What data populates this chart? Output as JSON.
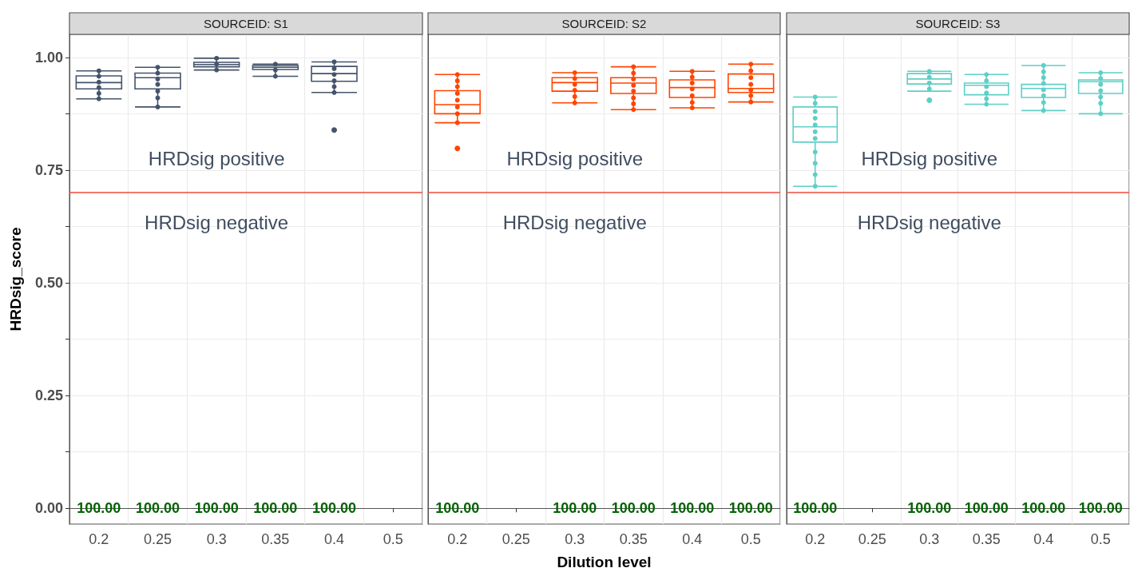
{
  "chart_data": [
    {
      "type": "box",
      "title": "SOURCEID: S1",
      "ylabel": "HRDsig_score",
      "categories": [
        "0.2",
        "0.25",
        "0.3",
        "0.35",
        "0.4",
        "0.5"
      ],
      "ylim": [
        -0.035,
        1.051
      ],
      "yticks": [
        {
          "value": 0,
          "label": "0.00"
        },
        {
          "value": 0.125,
          "label": null
        },
        {
          "value": 0.25,
          "label": "0.25"
        },
        {
          "value": 0.375,
          "label": null
        },
        {
          "value": 0.5,
          "label": "0.50"
        },
        {
          "value": 0.625,
          "label": null
        },
        {
          "value": 0.75,
          "label": "0.75"
        },
        {
          "value": 0.875,
          "label": null
        },
        {
          "value": 1,
          "label": "1.00"
        }
      ],
      "grid": true,
      "ref_lines": [
        {
          "axis": "y",
          "value": 0.7,
          "color": "#f04a3c"
        }
      ],
      "annotations": [
        "HRDsig positive",
        "HRDsig negative",
        "100.00",
        "100.00",
        "100.00",
        "100.00",
        "100.00"
      ],
      "series": [
        {
          "type": "box",
          "color": "#44546a",
          "boxes": [
            {
              "low": 0.908,
              "q1": 0.93,
              "median": 0.944,
              "q3": 0.959,
              "high": 0.97
            },
            {
              "low": 0.89,
              "q1": 0.93,
              "median": 0.955,
              "q3": 0.965,
              "high": 0.978
            },
            {
              "low": 0.972,
              "q1": 0.979,
              "median": 0.984,
              "q3": 0.989,
              "high": 0.998
            },
            {
              "low": 0.958,
              "q1": 0.973,
              "median": 0.978,
              "q3": 0.982,
              "high": 0.985
            },
            {
              "low": 0.922,
              "q1": 0.947,
              "median": 0.964,
              "q3": 0.98,
              "high": 0.99,
              "outliers": [
                0.839
              ]
            },
            null
          ]
        },
        {
          "type": "scatter",
          "color": "#44546a",
          "x": [
            "0.2",
            "0.2",
            "0.2",
            "0.2",
            "0.2",
            "0.2",
            "0.25",
            "0.25",
            "0.25",
            "0.25",
            "0.25",
            "0.25",
            "0.25",
            "0.3",
            "0.3",
            "0.3",
            "0.35",
            "0.35",
            "0.35",
            "0.4",
            "0.4",
            "0.4",
            "0.4",
            "0.4",
            "0.4"
          ],
          "values": [
            0.97,
            0.958,
            0.945,
            0.933,
            0.92,
            0.908,
            0.978,
            0.965,
            0.952,
            0.94,
            0.925,
            0.91,
            0.89,
            0.998,
            0.985,
            0.972,
            0.985,
            0.972,
            0.958,
            0.99,
            0.975,
            0.962,
            0.948,
            0.935,
            0.922
          ]
        }
      ]
    },
    {
      "type": "box",
      "title": "SOURCEID: S2",
      "xlabel": "Dilution level",
      "categories": [
        "0.2",
        "0.25",
        "0.3",
        "0.35",
        "0.4",
        "0.5"
      ],
      "ylim": [
        -0.035,
        1.051
      ],
      "tick_labels": "x",
      "yticks": [
        {
          "value": 0,
          "label": null
        },
        {
          "value": 0.125,
          "label": null
        },
        {
          "value": 0.25,
          "label": null
        },
        {
          "value": 0.375,
          "label": null
        },
        {
          "value": 0.5,
          "label": null
        },
        {
          "value": 0.625,
          "label": null
        },
        {
          "value": 0.75,
          "label": null
        },
        {
          "value": 0.875,
          "label": null
        },
        {
          "value": 1,
          "label": null
        }
      ],
      "grid": true,
      "ref_lines": [
        {
          "axis": "y",
          "value": 0.7,
          "color": "#f04a3c"
        }
      ],
      "annotations": [
        "HRDsig positive",
        "HRDsig negative",
        "100.00",
        "100.00",
        "100.00",
        "100.00",
        "100.00"
      ],
      "series": [
        {
          "type": "box",
          "color": "#ff4500",
          "boxes": [
            {
              "low": 0.855,
              "q1": 0.875,
              "median": 0.895,
              "q3": 0.926,
              "high": 0.962,
              "outliers": [
                0.798
              ]
            },
            null,
            {
              "low": 0.899,
              "q1": 0.925,
              "median": 0.944,
              "q3": 0.955,
              "high": 0.966
            },
            {
              "low": 0.884,
              "q1": 0.92,
              "median": 0.943,
              "q3": 0.955,
              "high": 0.979
            },
            {
              "low": 0.888,
              "q1": 0.911,
              "median": 0.933,
              "q3": 0.95,
              "high": 0.969
            },
            {
              "low": 0.901,
              "q1": 0.922,
              "median": 0.931,
              "q3": 0.963,
              "high": 0.985
            }
          ]
        },
        {
          "type": "scatter",
          "color": "#ff4500",
          "x": [
            "0.2",
            "0.2",
            "0.2",
            "0.2",
            "0.2",
            "0.2",
            "0.2",
            "0.2",
            "0.3",
            "0.3",
            "0.3",
            "0.3",
            "0.3",
            "0.3",
            "0.35",
            "0.35",
            "0.35",
            "0.35",
            "0.35",
            "0.35",
            "0.35",
            "0.35",
            "0.4",
            "0.4",
            "0.4",
            "0.4",
            "0.4",
            "0.4",
            "0.4",
            "0.5",
            "0.5",
            "0.5",
            "0.5",
            "0.5",
            "0.5",
            "0.5"
          ],
          "values": [
            0.962,
            0.948,
            0.935,
            0.92,
            0.905,
            0.89,
            0.875,
            0.855,
            0.966,
            0.953,
            0.94,
            0.927,
            0.913,
            0.899,
            0.979,
            0.965,
            0.952,
            0.938,
            0.925,
            0.91,
            0.897,
            0.884,
            0.969,
            0.956,
            0.943,
            0.93,
            0.915,
            0.9,
            0.888,
            0.985,
            0.97,
            0.955,
            0.94,
            0.928,
            0.915,
            0.901
          ]
        }
      ]
    },
    {
      "type": "box",
      "title": "SOURCEID: S3",
      "categories": [
        "0.2",
        "0.25",
        "0.3",
        "0.35",
        "0.4",
        "0.5"
      ],
      "ylim": [
        -0.035,
        1.051
      ],
      "tick_labels": "x",
      "yticks": [
        {
          "value": 0,
          "label": null
        },
        {
          "value": 0.125,
          "label": null
        },
        {
          "value": 0.25,
          "label": null
        },
        {
          "value": 0.375,
          "label": null
        },
        {
          "value": 0.5,
          "label": null
        },
        {
          "value": 0.625,
          "label": null
        },
        {
          "value": 0.75,
          "label": null
        },
        {
          "value": 0.875,
          "label": null
        },
        {
          "value": 1,
          "label": null
        }
      ],
      "grid": true,
      "ref_lines": [
        {
          "axis": "y",
          "value": 0.7,
          "color": "#f04a3c"
        }
      ],
      "annotations": [
        "HRDsig positive",
        "HRDsig negative",
        "100.00",
        "100.00",
        "100.00",
        "100.00",
        "100.00"
      ],
      "series": [
        {
          "type": "box",
          "color": "#5fcfc6",
          "boxes": [
            {
              "low": 0.714,
              "q1": 0.812,
              "median": 0.846,
              "q3": 0.89,
              "high": 0.912
            },
            null,
            {
              "low": 0.925,
              "q1": 0.941,
              "median": 0.952,
              "q3": 0.964,
              "high": 0.969,
              "outliers": [
                0.905
              ]
            },
            {
              "low": 0.896,
              "q1": 0.917,
              "median": 0.938,
              "q3": 0.943,
              "high": 0.962
            },
            {
              "low": 0.882,
              "q1": 0.911,
              "median": 0.931,
              "q3": 0.94,
              "high": 0.982
            },
            {
              "low": 0.875,
              "q1": 0.92,
              "median": 0.946,
              "q3": 0.95,
              "high": 0.966
            }
          ]
        },
        {
          "type": "scatter",
          "color": "#5fcfc6",
          "x": [
            "0.2",
            "0.2",
            "0.2",
            "0.2",
            "0.2",
            "0.2",
            "0.2",
            "0.2",
            "0.2",
            "0.2",
            "0.2",
            "0.3",
            "0.3",
            "0.3",
            "0.3",
            "0.35",
            "0.35",
            "0.35",
            "0.35",
            "0.35",
            "0.35",
            "0.4",
            "0.4",
            "0.4",
            "0.4",
            "0.4",
            "0.4",
            "0.4",
            "0.4",
            "0.5",
            "0.5",
            "0.5",
            "0.5",
            "0.5",
            "0.5",
            "0.5"
          ],
          "values": [
            0.912,
            0.898,
            0.88,
            0.865,
            0.85,
            0.835,
            0.82,
            0.79,
            0.765,
            0.74,
            0.714,
            0.969,
            0.956,
            0.943,
            0.93,
            0.962,
            0.948,
            0.935,
            0.921,
            0.908,
            0.896,
            0.982,
            0.968,
            0.955,
            0.942,
            0.928,
            0.915,
            0.9,
            0.882,
            0.966,
            0.953,
            0.94,
            0.926,
            0.912,
            0.898,
            0.875
          ]
        }
      ]
    }
  ]
}
